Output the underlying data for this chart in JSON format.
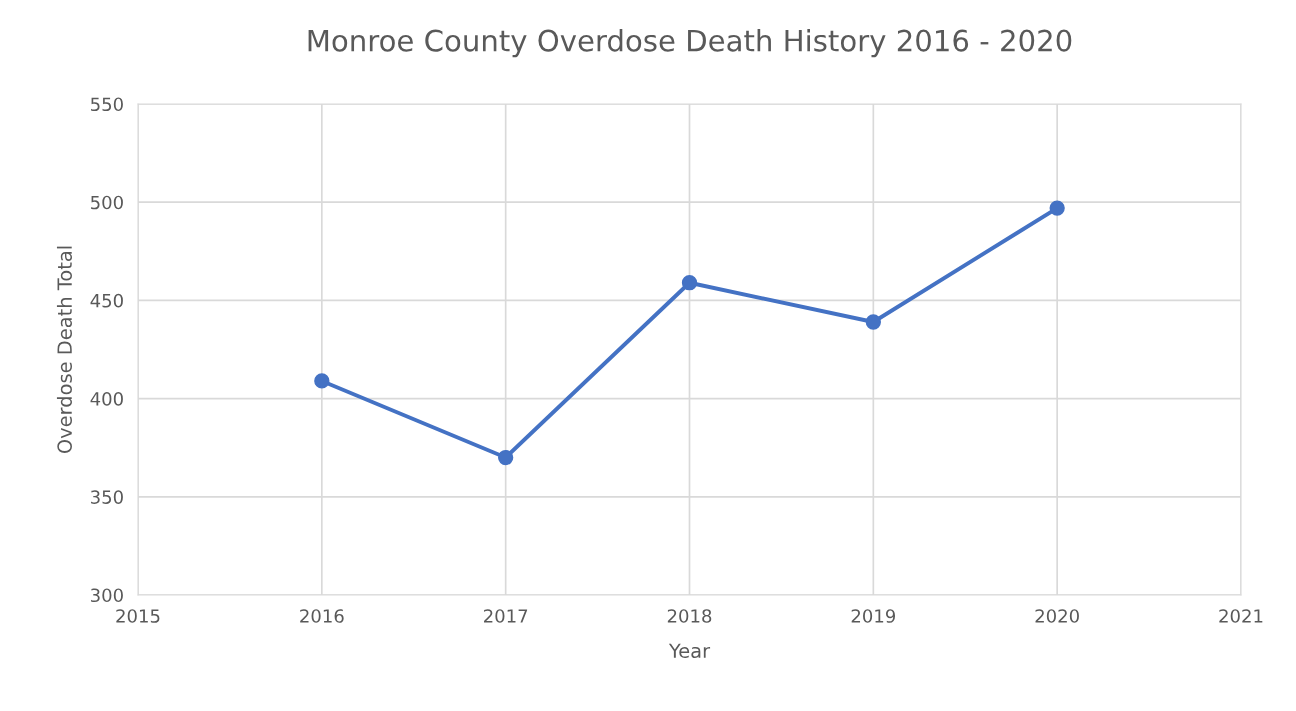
{
  "chart_data": {
    "type": "line",
    "title": "Monroe County Overdose Death History 2016 - 2020",
    "xlabel": "Year",
    "ylabel": "Overdose Death Total",
    "x": [
      2016,
      2017,
      2018,
      2019,
      2020
    ],
    "series": [
      {
        "color": "#4472c4",
        "values": [
          409,
          370,
          459,
          439,
          497
        ]
      }
    ],
    "xlim": [
      2015,
      2021
    ],
    "xticks": [
      2015,
      2016,
      2017,
      2018,
      2019,
      2020,
      2021
    ],
    "ylim": [
      300,
      550
    ],
    "yticks": [
      300,
      350,
      400,
      450,
      500,
      550
    ],
    "grid": true,
    "marker": "circle",
    "line_style": "solid"
  }
}
